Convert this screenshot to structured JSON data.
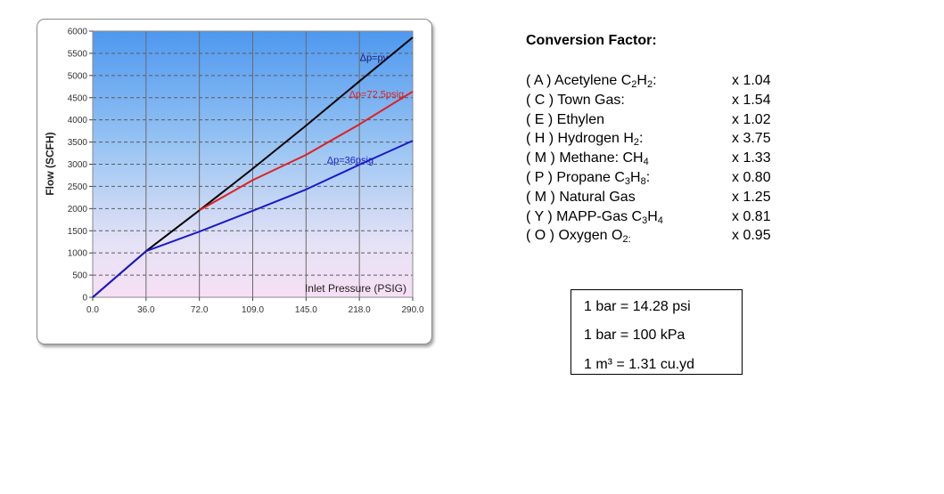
{
  "chart_data": {
    "type": "line",
    "title": "",
    "ylabel": "Flow (SCFH)",
    "xlabel": "Inlet Pressure (PSIG)",
    "x_ticks": [
      "0.0",
      "36.0",
      "72.0",
      "109.0",
      "145.0",
      "218.0",
      "290.0"
    ],
    "y_ticks": [
      "0",
      "500",
      "1000",
      "1500",
      "2000",
      "2500",
      "3000",
      "3500",
      "4000",
      "4500",
      "5000",
      "5500",
      "6000"
    ],
    "ylim": [
      0,
      6000
    ],
    "grid": true,
    "series": [
      {
        "name": "Δp=pv",
        "color": "#000000",
        "points": [
          [
            0,
            0
          ],
          [
            1,
            1040
          ],
          [
            2,
            1960
          ],
          [
            3,
            2900
          ],
          [
            4,
            3870
          ],
          [
            5,
            4870
          ],
          [
            6,
            5860
          ]
        ]
      },
      {
        "name": "Δp=72,5psig",
        "color": "#e0201e",
        "points": [
          [
            2,
            1960
          ],
          [
            3,
            2640
          ],
          [
            4,
            3210
          ],
          [
            5,
            3900
          ],
          [
            6,
            4640
          ]
        ]
      },
      {
        "name": "Δp=36psig",
        "color": "#1a1acc",
        "points": [
          [
            0,
            0
          ],
          [
            1,
            1040
          ],
          [
            2,
            1480
          ],
          [
            3,
            1950
          ],
          [
            4,
            2430
          ],
          [
            5,
            2990
          ],
          [
            6,
            3530
          ]
        ]
      }
    ]
  },
  "conversion": {
    "title": "Conversion Factor:",
    "rows": [
      {
        "label": "( A ) Acetylene C<sub>2</sub>H<sub>2</sub>:",
        "value": "x 1.04"
      },
      {
        "label": "( C ) Town Gas:",
        "value": "x 1.54"
      },
      {
        "label": "( E ) Ethylen",
        "value": "x 1.02"
      },
      {
        "label": "( H ) Hydrogen H<sub>2</sub>:",
        "value": "x 3.75"
      },
      {
        "label": "( M ) Methane: CH<sub>4</sub>",
        "value": "x 1.33"
      },
      {
        "label": "( P ) Propane C<sub>3</sub>H<sub>8</sub>:",
        "value": "x 0.80"
      },
      {
        "label": "( M ) Natural Gas",
        "value": "x 1.25"
      },
      {
        "label": "( Y ) MAPP-Gas C<sub>3</sub>H<sub>4</sub>",
        "value": "x 0.81"
      },
      {
        "label": "( O ) Oxygen O<sub>2:</sub>",
        "value": "x 0.95"
      }
    ]
  },
  "units": [
    "1 bar = 14.28 psi",
    "1 bar = 100 kPa",
    "1 m³ =  1.31 cu.yd"
  ]
}
